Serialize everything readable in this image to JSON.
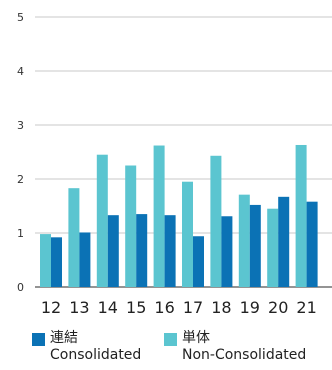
{
  "chart_data": {
    "type": "bar",
    "categories": [
      "12",
      "13",
      "14",
      "15",
      "16",
      "17",
      "18",
      "19",
      "20",
      "21"
    ],
    "series": [
      {
        "name_ja": "単体",
        "name": "Non-Consolidated",
        "color": "#5bc5d0",
        "values": [
          0.98,
          1.83,
          2.45,
          2.25,
          2.62,
          1.95,
          2.43,
          1.71,
          1.45,
          2.63
        ]
      },
      {
        "name_ja": "連結",
        "name": "Consolidated",
        "color": "#0b72b5",
        "values": [
          0.92,
          1.01,
          1.33,
          1.35,
          1.33,
          0.94,
          1.31,
          1.52,
          1.67,
          1.58
        ]
      }
    ],
    "yticks": [
      "0",
      "1",
      "2",
      "3",
      "4",
      "5"
    ],
    "ylim": [
      0,
      5
    ],
    "grid": true,
    "legend_position": "bottom"
  }
}
